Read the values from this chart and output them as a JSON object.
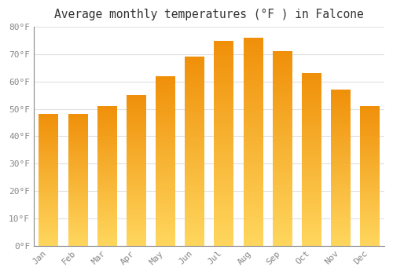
{
  "title": "Average monthly temperatures (°F ) in Falcone",
  "months": [
    "Jan",
    "Feb",
    "Mar",
    "Apr",
    "May",
    "Jun",
    "Jul",
    "Aug",
    "Sep",
    "Oct",
    "Nov",
    "Dec"
  ],
  "values": [
    48,
    48,
    51,
    55,
    62,
    69,
    75,
    76,
    71,
    63,
    57,
    51
  ],
  "bar_color_light": "#FFD75E",
  "bar_color_dark": "#F0900A",
  "ylim": [
    0,
    80
  ],
  "yticks": [
    0,
    10,
    20,
    30,
    40,
    50,
    60,
    70,
    80
  ],
  "ytick_labels": [
    "0°F",
    "10°F",
    "20°F",
    "30°F",
    "40°F",
    "50°F",
    "60°F",
    "70°F",
    "80°F"
  ],
  "background_color": "#ffffff",
  "grid_color": "#e0e0e0",
  "title_fontsize": 10.5,
  "tick_fontsize": 8,
  "bar_width": 0.65
}
